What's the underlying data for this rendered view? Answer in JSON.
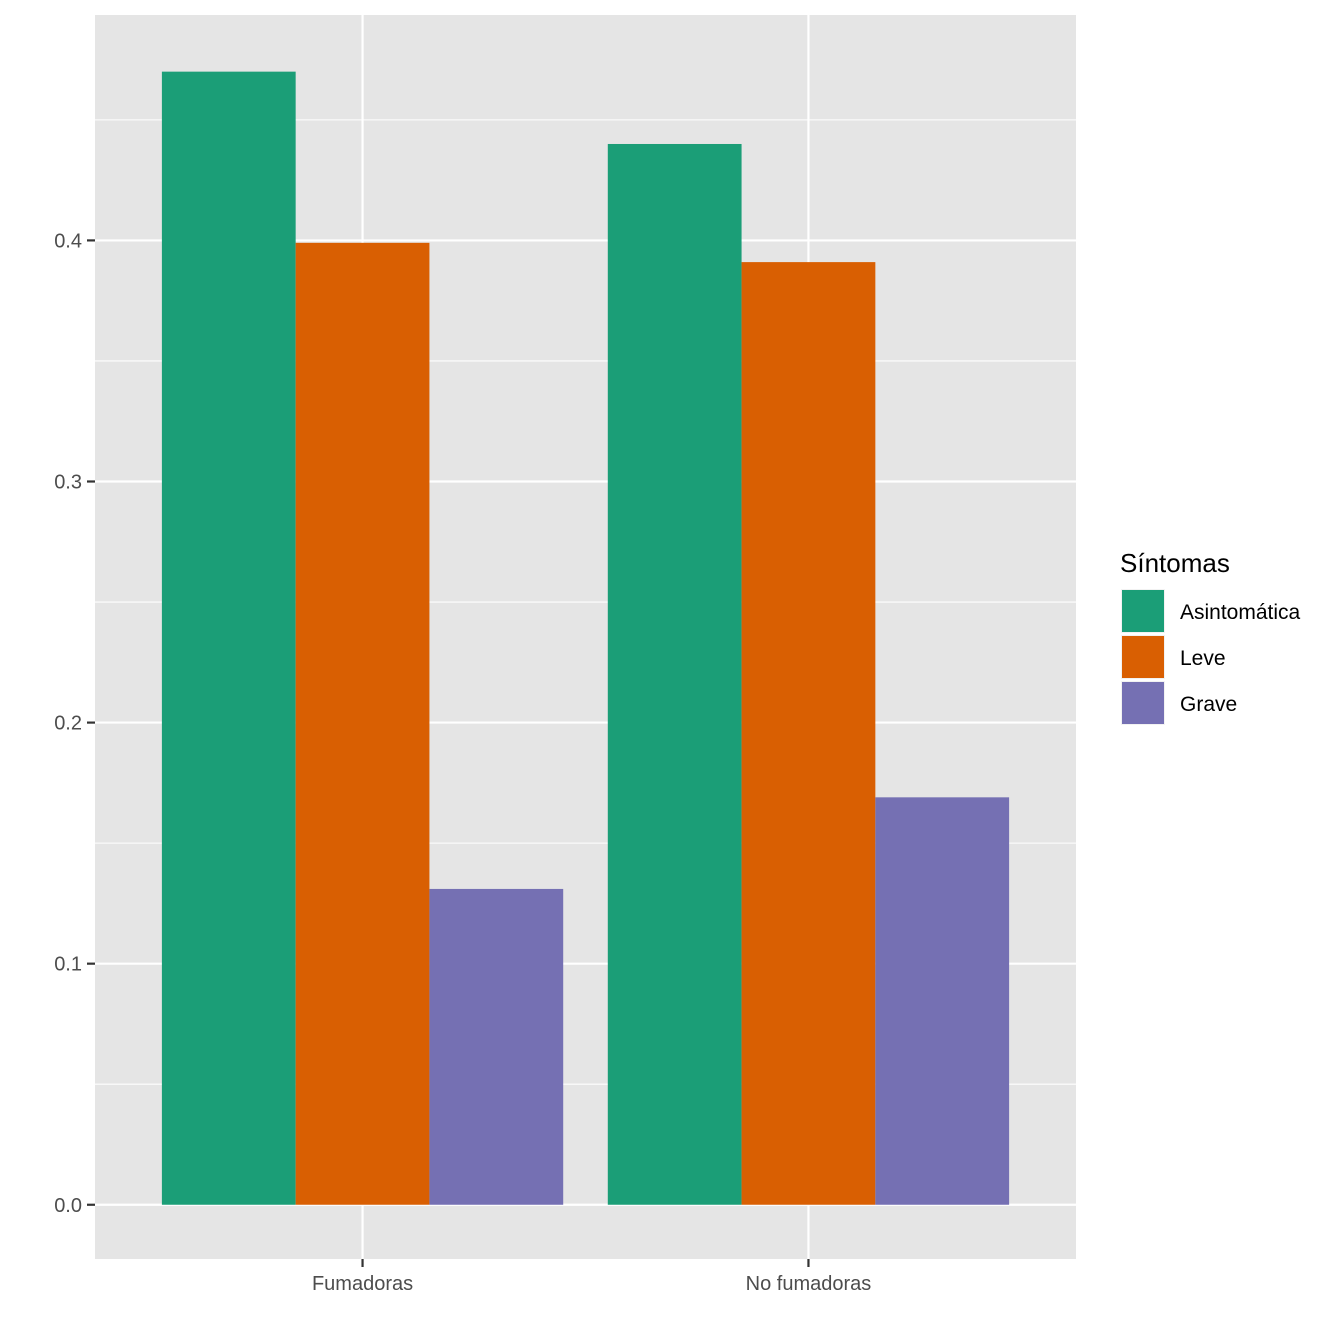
{
  "chart_data": {
    "type": "bar",
    "title": "",
    "xlabel": "",
    "ylabel": "",
    "categories": [
      "Fumadoras",
      "No fumadoras"
    ],
    "series": [
      {
        "name": "Asintomática",
        "color": "#1b9e77",
        "values": [
          0.47,
          0.44
        ]
      },
      {
        "name": "Leve",
        "color": "#d95f02",
        "values": [
          0.399,
          0.391
        ]
      },
      {
        "name": "Grave",
        "color": "#7570b3",
        "values": [
          0.131,
          0.169
        ]
      }
    ],
    "ylim": [
      -0.0225,
      0.4935
    ],
    "yticks": [
      0.0,
      0.1,
      0.2,
      0.3,
      0.4
    ],
    "ytick_labels": [
      "0.0",
      "0.1",
      "0.2",
      "0.3",
      "0.4"
    ],
    "grid": true,
    "panel_background": "#e5e5e5",
    "grid_color": "#ffffff",
    "legend": {
      "title": "Síntomas",
      "position": "right"
    }
  }
}
